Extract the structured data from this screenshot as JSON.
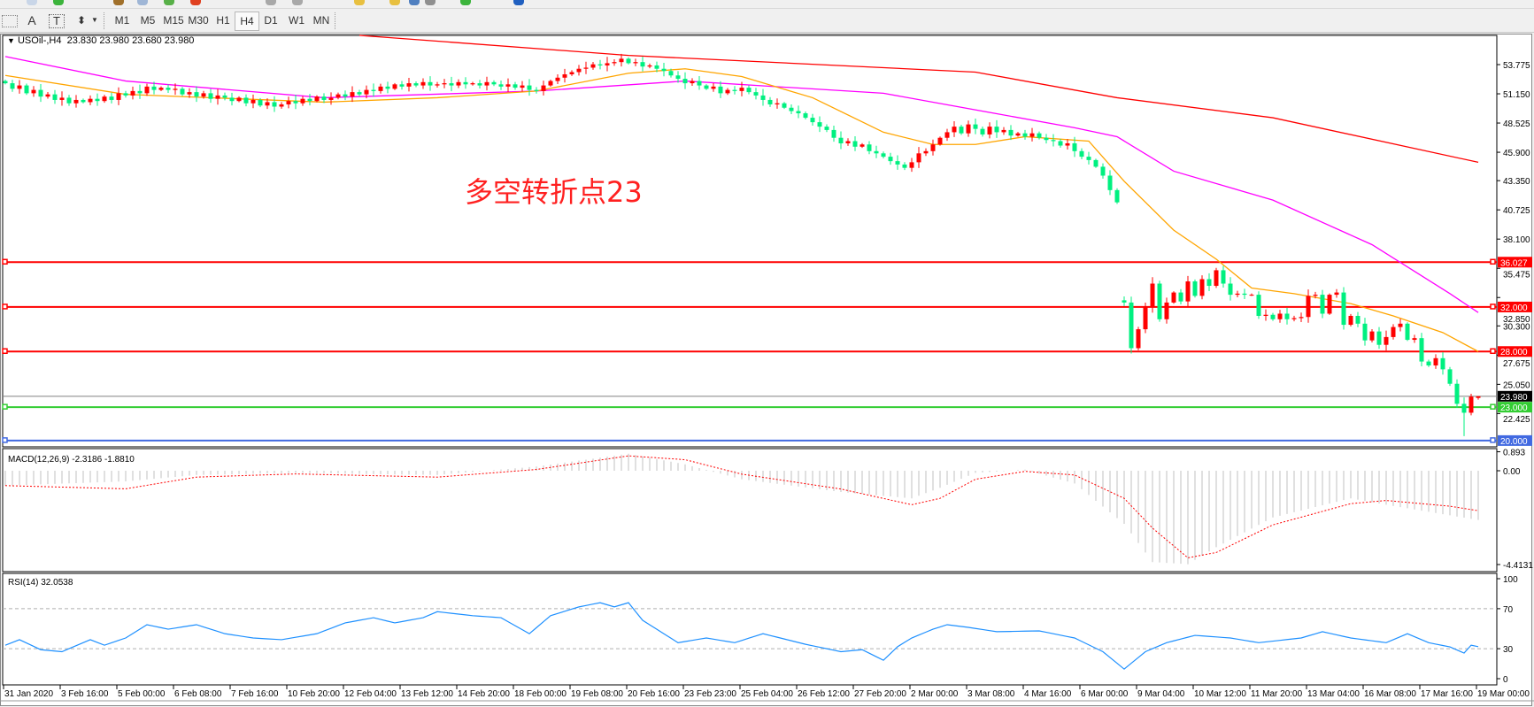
{
  "toolbar": {
    "text_tool": "A",
    "label_tool": "T",
    "periods": [
      {
        "label": "M1"
      },
      {
        "label": "M5"
      },
      {
        "label": "M15"
      },
      {
        "label": "M30"
      },
      {
        "label": "H1"
      },
      {
        "label": "H4",
        "active": true
      },
      {
        "label": "D1"
      },
      {
        "label": "W1"
      },
      {
        "label": "MN"
      }
    ]
  },
  "chart": {
    "symbol": "USOil-,H4",
    "open": "23.830",
    "high": "23.980",
    "low": "23.680",
    "close": "23.980",
    "annotation": "多空转折点23",
    "colors": {
      "bull": "#ff0000",
      "bear": "#00f080",
      "ma_fast": "#ffa500",
      "ma_mid": "#ff00ff",
      "ma_slow": "#ff0000",
      "rsi": "#1e90ff",
      "macd_hist": "#c0c0c0",
      "macd_signal": "#ff0000"
    }
  },
  "chart_data": {
    "type": "candlestick",
    "price_ticks": [
      "53.775",
      "51.150",
      "48.525",
      "45.900",
      "43.350",
      "40.725",
      "38.100",
      "35.475",
      "32.850",
      "30.300",
      "27.675",
      "25.050",
      "22.425"
    ],
    "levels": [
      {
        "value": 36.027,
        "label": "36.027",
        "color": "#ff0000"
      },
      {
        "value": 32.0,
        "label": "32.000",
        "color": "#ff0000"
      },
      {
        "value": 28.0,
        "label": "28.000",
        "color": "#ff0000"
      },
      {
        "value": 23.0,
        "label": "23.000",
        "color": "#32cd32"
      },
      {
        "value": 20.0,
        "label": "20.000",
        "color": "#4169e1"
      }
    ],
    "current_price": {
      "value": 23.98,
      "label": "23.980"
    },
    "time_labels": [
      "31 Jan 2020",
      "3 Feb 16:00",
      "5 Feb 00:00",
      "6 Feb 08:00",
      "7 Feb 16:00",
      "10 Feb 20:00",
      "12 Feb 04:00",
      "13 Feb 12:00",
      "14 Feb 20:00",
      "18 Feb 00:00",
      "19 Feb 08:00",
      "20 Feb 16:00",
      "23 Feb 23:00",
      "25 Feb 04:00",
      "26 Feb 12:00",
      "27 Feb 20:00",
      "2 Mar 00:00",
      "3 Mar 08:00",
      "4 Mar 16:00",
      "6 Mar 00:00",
      "9 Mar 04:00",
      "10 Mar 12:00",
      "11 Mar 20:00",
      "13 Mar 04:00",
      "16 Mar 08:00",
      "17 Mar 16:00",
      "19 Mar 00:00"
    ],
    "closes": [
      52.1,
      51.6,
      51.9,
      51.2,
      51.5,
      50.9,
      51.1,
      50.6,
      50.8,
      50.3,
      50.6,
      50.4,
      50.7,
      50.5,
      50.9,
      50.6,
      51.2,
      51.0,
      51.4,
      51.2,
      51.8,
      51.5,
      51.7,
      51.5,
      51.6,
      51.1,
      51.3,
      50.9,
      51.2,
      50.7,
      51.0,
      50.8,
      50.5,
      50.8,
      50.3,
      50.6,
      50.1,
      50.4,
      50.0,
      50.2,
      50.5,
      50.3,
      50.7,
      50.5,
      50.9,
      50.6,
      50.8,
      51.1,
      50.9,
      51.3,
      51.1,
      51.5,
      51.4,
      51.8,
      51.6,
      52.0,
      51.8,
      52.1,
      51.9,
      52.2,
      51.9,
      52.0,
      52.1,
      51.9,
      52.2,
      52.0,
      52.1,
      51.9,
      52.2,
      52.0,
      51.8,
      52.0,
      51.7,
      51.9,
      51.5,
      51.4,
      51.9,
      52.3,
      52.6,
      52.9,
      53.1,
      53.4,
      53.5,
      53.8,
      53.7,
      53.9,
      54.0,
      54.3,
      53.9,
      54.0,
      53.6,
      53.7,
      53.4,
      53.2,
      52.8,
      52.5,
      52.1,
      52.3,
      51.9,
      51.6,
      51.8,
      51.2,
      51.5,
      51.4,
      51.7,
      51.3,
      51.0,
      50.6,
      50.2,
      50.3,
      49.9,
      49.6,
      49.4,
      49.0,
      48.6,
      48.2,
      47.9,
      47.2,
      46.7,
      46.9,
      46.4,
      46.6,
      46.0,
      45.8,
      45.5,
      45.1,
      44.8,
      44.5,
      45.0,
      45.8,
      46.0,
      46.6,
      47.2,
      47.7,
      48.2,
      47.6,
      48.4,
      48.0,
      47.5,
      48.2,
      47.7,
      47.9,
      47.4,
      47.6,
      47.3,
      47.6,
      47.2,
      47.0,
      46.9,
      46.5,
      46.7,
      46.0,
      45.5,
      45.2,
      44.6,
      43.8,
      42.5,
      41.4,
      32.4,
      28.3,
      30.0,
      32.0,
      34.1,
      30.9,
      32.4,
      33.3,
      32.5,
      34.3,
      33.0,
      34.5,
      33.9,
      35.3,
      34.1,
      33.1,
      33.2,
      33.1,
      33.1,
      31.2,
      31.3,
      30.9,
      31.4,
      30.9,
      31.0,
      31.1,
      33.0,
      33.1,
      31.4,
      33.1,
      33.3,
      30.4,
      31.2,
      30.5,
      29.0,
      29.8,
      28.6,
      29.3,
      30.2,
      30.5,
      29.05,
      29.2,
      27.1,
      26.75,
      27.4,
      26.4,
      25.1,
      23.3,
      22.5,
      23.95,
      23.98
    ],
    "moving_averages": {
      "slow": [
        [
          50,
          56.4
        ],
        [
          88,
          54.6
        ],
        [
          137,
          53.1
        ],
        [
          157,
          50.8
        ],
        [
          179,
          49.0
        ],
        [
          208,
          45.0
        ]
      ],
      "mid": [
        [
          0,
          54.5
        ],
        [
          17,
          52.3
        ],
        [
          45,
          50.8
        ],
        [
          75,
          51.4
        ],
        [
          96,
          52.3
        ],
        [
          124,
          51.2
        ],
        [
          151,
          48.1
        ],
        [
          157,
          47.3
        ],
        [
          165,
          44.2
        ],
        [
          179,
          41.6
        ],
        [
          193,
          37.6
        ],
        [
          204,
          33.2
        ],
        [
          208,
          31.5
        ]
      ],
      "fast": [
        [
          0,
          52.8
        ],
        [
          17,
          51.1
        ],
        [
          45,
          50.4
        ],
        [
          61,
          50.8
        ],
        [
          75,
          51.4
        ],
        [
          88,
          53.0
        ],
        [
          96,
          53.4
        ],
        [
          104,
          52.7
        ],
        [
          114,
          50.8
        ],
        [
          124,
          47.7
        ],
        [
          131,
          46.6
        ],
        [
          137,
          46.6
        ],
        [
          144,
          47.3
        ],
        [
          153,
          46.9
        ],
        [
          158,
          43.3
        ],
        [
          165,
          38.9
        ],
        [
          171,
          36.3
        ],
        [
          176,
          33.7
        ],
        [
          182,
          33.2
        ],
        [
          190,
          32.3
        ],
        [
          196,
          31.2
        ],
        [
          203,
          29.7
        ],
        [
          208,
          28.0
        ]
      ]
    },
    "macd": {
      "label": "MACD(12,26,9) -2.3186 -1.8810",
      "ticks": [
        "0.893",
        "0.00",
        "-4.4131"
      ],
      "main": [
        [
          0,
          -0.7
        ],
        [
          17,
          -0.5
        ],
        [
          27,
          -0.2
        ],
        [
          41,
          -0.1
        ],
        [
          61,
          -0.2
        ],
        [
          75,
          0.2
        ],
        [
          88,
          0.8
        ],
        [
          96,
          0.3
        ],
        [
          104,
          -0.4
        ],
        [
          118,
          -1.0
        ],
        [
          128,
          -1.3
        ],
        [
          132,
          -0.8
        ],
        [
          137,
          -0.1
        ],
        [
          144,
          0.05
        ],
        [
          151,
          -0.6
        ],
        [
          158,
          -2.5
        ],
        [
          162,
          -4.3
        ],
        [
          167,
          -4.4
        ],
        [
          171,
          -3.6
        ],
        [
          179,
          -2.2
        ],
        [
          190,
          -1.3
        ],
        [
          195,
          -1.6
        ],
        [
          204,
          -2.1
        ],
        [
          208,
          -2.3186
        ]
      ],
      "signal": [
        [
          0,
          -0.7
        ],
        [
          17,
          -0.85
        ],
        [
          27,
          -0.3
        ],
        [
          41,
          -0.15
        ],
        [
          61,
          -0.3
        ],
        [
          75,
          0.06
        ],
        [
          88,
          0.7
        ],
        [
          96,
          0.52
        ],
        [
          104,
          -0.16
        ],
        [
          118,
          -0.86
        ],
        [
          128,
          -1.6
        ],
        [
          132,
          -1.3
        ],
        [
          137,
          -0.4
        ],
        [
          144,
          -0.03
        ],
        [
          151,
          -0.2
        ],
        [
          158,
          -1.3
        ],
        [
          162,
          -2.7
        ],
        [
          167,
          -4.1
        ],
        [
          171,
          -3.85
        ],
        [
          179,
          -2.55
        ],
        [
          190,
          -1.55
        ],
        [
          195,
          -1.4
        ],
        [
          204,
          -1.67
        ],
        [
          208,
          -1.881
        ]
      ]
    },
    "rsi": {
      "label": "RSI(14) 32.0538",
      "ticks": [
        "100",
        "70",
        "30",
        "0"
      ],
      "levels": [
        70,
        30
      ],
      "values": [
        [
          0,
          33.5
        ],
        [
          2,
          39
        ],
        [
          5,
          29
        ],
        [
          8,
          27
        ],
        [
          12,
          39
        ],
        [
          14,
          33.5
        ],
        [
          17,
          40.7
        ],
        [
          20,
          54
        ],
        [
          23,
          49.5
        ],
        [
          27,
          54
        ],
        [
          31,
          45
        ],
        [
          35,
          40.7
        ],
        [
          39,
          39
        ],
        [
          44,
          45
        ],
        [
          48,
          55.8
        ],
        [
          52,
          61
        ],
        [
          55,
          55.8
        ],
        [
          59,
          61
        ],
        [
          61,
          67
        ],
        [
          66,
          63
        ],
        [
          70,
          61
        ],
        [
          74,
          45
        ],
        [
          77,
          63
        ],
        [
          81,
          71.8
        ],
        [
          84,
          76
        ],
        [
          86,
          71.8
        ],
        [
          88,
          76
        ],
        [
          90,
          58.4
        ],
        [
          95,
          36
        ],
        [
          99,
          40.7
        ],
        [
          103,
          36
        ],
        [
          107,
          45
        ],
        [
          113,
          34.4
        ],
        [
          118,
          27
        ],
        [
          121,
          29
        ],
        [
          124,
          18.4
        ],
        [
          126,
          32
        ],
        [
          128,
          40.7
        ],
        [
          131,
          49.5
        ],
        [
          133,
          54
        ],
        [
          136,
          51.3
        ],
        [
          140,
          47
        ],
        [
          146,
          47.8
        ],
        [
          151,
          40.7
        ],
        [
          155,
          27
        ],
        [
          158,
          9.6
        ],
        [
          161,
          27
        ],
        [
          164,
          36
        ],
        [
          168,
          43.3
        ],
        [
          173,
          40.7
        ],
        [
          177,
          36
        ],
        [
          183,
          40.7
        ],
        [
          186,
          47
        ],
        [
          190,
          40.7
        ],
        [
          195,
          36
        ],
        [
          198,
          45
        ],
        [
          201,
          36
        ],
        [
          204,
          31.8
        ],
        [
          206,
          25.6
        ],
        [
          207,
          33.5
        ],
        [
          208,
          32.05
        ]
      ]
    }
  }
}
